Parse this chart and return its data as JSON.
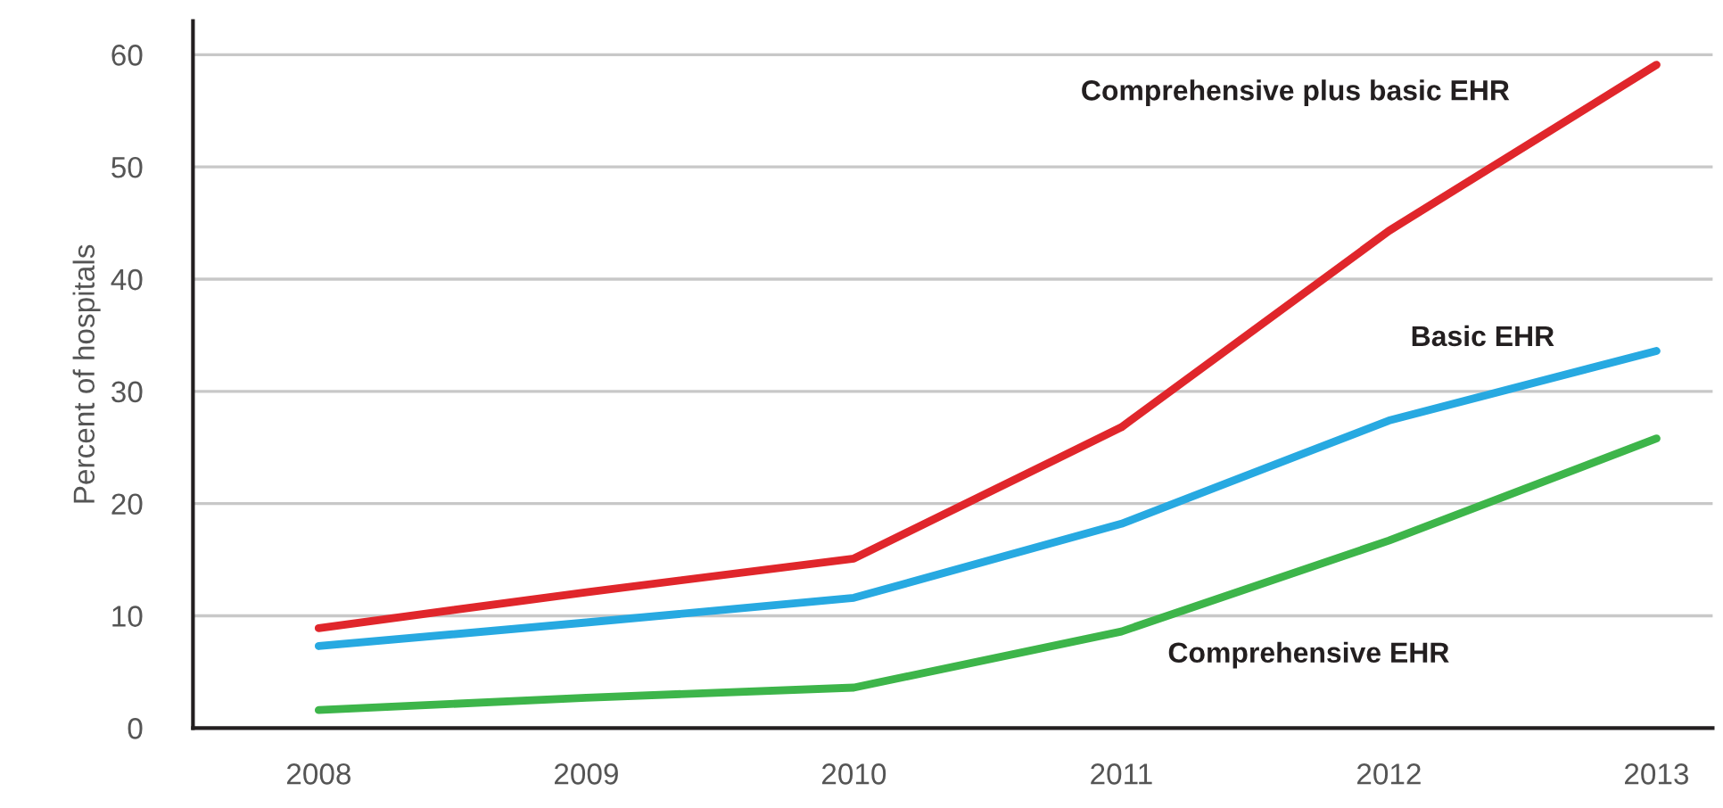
{
  "chart_data": {
    "type": "line",
    "ylabel": "Percent of hospitals",
    "x": [
      2008,
      2009,
      2010,
      2011,
      2012,
      2013
    ],
    "series": [
      {
        "name": "Comprehensive plus basic EHR",
        "color": "#e0262b",
        "values": [
          8.9,
          12.1,
          15.1,
          26.8,
          44.3,
          59.1
        ]
      },
      {
        "name": "Basic EHR",
        "color": "#27a9e1",
        "values": [
          7.3,
          9.4,
          11.6,
          18.2,
          27.4,
          33.6
        ]
      },
      {
        "name": "Comprehensive EHR",
        "color": "#3db54a",
        "values": [
          1.6,
          2.7,
          3.6,
          8.6,
          16.7,
          25.8
        ]
      }
    ],
    "xlim": [
      2007.53,
      2013.21
    ],
    "xticks": [
      2008,
      2009,
      2010,
      2011,
      2012,
      2013
    ],
    "ylim": [
      0,
      63
    ],
    "yticks": [
      0,
      10,
      20,
      30,
      40,
      50,
      60
    ],
    "grid": "y",
    "legend": false,
    "marker": "none",
    "line_style": "solid"
  }
}
